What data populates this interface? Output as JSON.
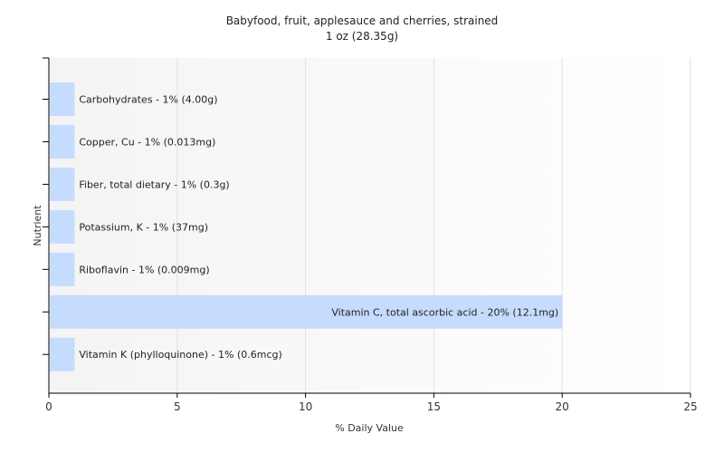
{
  "chart_data": {
    "type": "bar",
    "orientation": "horizontal",
    "title": "Babyfood, fruit, applesauce and cherries, strained",
    "subtitle": "1 oz (28.35g)",
    "xlabel": "% Daily Value",
    "ylabel": "Nutrient",
    "xlim": [
      0,
      25
    ],
    "xticks": [
      0,
      5,
      10,
      15,
      20,
      25
    ],
    "grid": true,
    "categories": [
      "Carbohydrates",
      "Copper, Cu",
      "Fiber, total dietary",
      "Potassium, K",
      "Riboflavin",
      "Vitamin C, total ascorbic acid",
      "Vitamin K (phylloquinone)"
    ],
    "values": [
      1,
      1,
      1,
      1,
      1,
      20,
      1
    ],
    "labels": [
      "Carbohydrates - 1% (4.00g)",
      "Copper, Cu - 1% (0.013mg)",
      "Fiber, total dietary - 1% (0.3g)",
      "Potassium, K - 1% (37mg)",
      "Riboflavin - 1% (0.009mg)",
      "Vitamin C, total ascorbic acid - 20% (12.1mg)",
      "Vitamin K (phylloquinone) - 1% (0.6mcg)"
    ],
    "colors": {
      "bar": "#c6dcff",
      "grid": "#e2e2e2",
      "axis": "#000000"
    }
  }
}
